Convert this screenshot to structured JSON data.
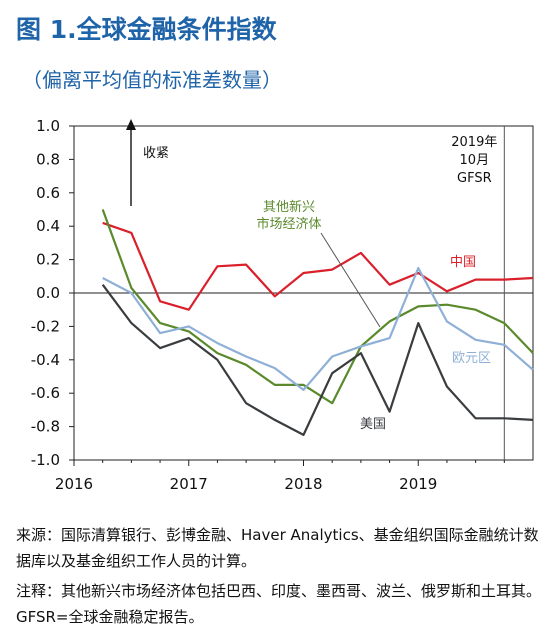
{
  "title": "图 1.全球金融条件指数",
  "subtitle": "（偏离平均值的标准差数量）",
  "notes": {
    "source": "来源：国际清算银行、彭博金融、Haver Analytics、基金组织国际金融统计数据库以及基金组织工作人员的计算。",
    "remark": "注释：其他新兴市场经济体包括巴西、印度、墨西哥、波兰、俄罗斯和土耳其。GFSR=全球金融稳定报告。"
  },
  "chart_data": {
    "type": "line",
    "ylim": [
      -1.0,
      1.0
    ],
    "yticks": [
      1.0,
      0.8,
      0.6,
      0.4,
      0.2,
      0.0,
      -0.2,
      -0.4,
      -0.6,
      -0.8,
      -1.0
    ],
    "ytick_labels": [
      "1.0",
      "0.8",
      "0.6",
      "0.4",
      "0.2",
      "0.0",
      "-0.2",
      "-0.4",
      "-0.6",
      "-0.8",
      "-1.0"
    ],
    "xlim": [
      2016.0,
      2020.0
    ],
    "xticks": [
      2016,
      2017,
      2018,
      2019
    ],
    "xtick_labels": [
      "2016",
      "2017",
      "2018",
      "2019"
    ],
    "x": [
      2016.25,
      2016.5,
      2016.75,
      2017.0,
      2017.25,
      2017.5,
      2017.75,
      2018.0,
      2018.25,
      2018.5,
      2018.75,
      2019.0,
      2019.25,
      2019.5,
      2019.75,
      2020.0
    ],
    "series": [
      {
        "name": "中国",
        "color": "#d9202b",
        "values": [
          0.42,
          0.36,
          -0.05,
          -0.1,
          0.16,
          0.17,
          -0.02,
          0.12,
          0.14,
          0.24,
          0.05,
          0.12,
          0.01,
          0.08,
          0.08,
          0.09
        ]
      },
      {
        "name": "其他新兴市场经济体",
        "color": "#5a8a2c",
        "values": [
          0.5,
          0.03,
          -0.18,
          -0.23,
          -0.36,
          -0.43,
          -0.55,
          -0.55,
          -0.66,
          -0.32,
          -0.17,
          -0.08,
          -0.07,
          -0.1,
          -0.18,
          -0.36
        ]
      },
      {
        "name": "欧元区",
        "color": "#8fb0d6",
        "values": [
          0.09,
          0.0,
          -0.24,
          -0.2,
          -0.3,
          -0.38,
          -0.45,
          -0.58,
          -0.38,
          -0.32,
          -0.27,
          0.15,
          -0.17,
          -0.28,
          -0.31,
          -0.46
        ]
      },
      {
        "name": "美国",
        "color": "#3a3d40",
        "values": [
          0.05,
          -0.18,
          -0.33,
          -0.27,
          -0.4,
          -0.66,
          -0.76,
          -0.85,
          -0.48,
          -0.36,
          -0.71,
          -0.18,
          -0.56,
          -0.75,
          -0.75,
          -0.76
        ]
      }
    ],
    "series_labels": [
      {
        "text": "中国",
        "series": 0
      },
      {
        "text": "其他新兴\n市场经济体",
        "series": 1
      },
      {
        "text": "欧元区",
        "series": 2
      },
      {
        "text": "美国",
        "series": 3
      }
    ],
    "annotations": {
      "tighten": "收紧",
      "gfsr": "2019年\n10月\nGFSR",
      "gfsr_x": 2019.75
    },
    "grid": false
  }
}
